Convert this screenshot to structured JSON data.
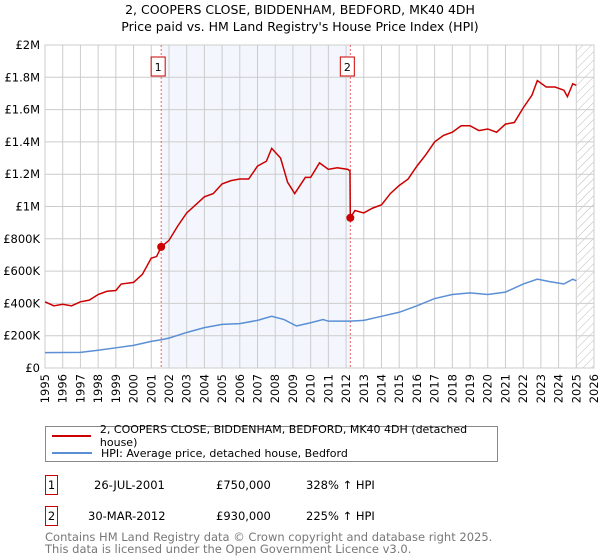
{
  "title": "2, COOPERS CLOSE, BIDDENHAM, BEDFORD, MK40 4DH",
  "subtitle": "Price paid vs. HM Land Registry's House Price Index (HPI)",
  "chart_data": {
    "type": "line",
    "title": "2, COOPERS CLOSE, BIDDENHAM, BEDFORD, MK40 4DH",
    "subtitle": "Price paid vs. HM Land Registry's House Price Index (HPI)",
    "xlim": [
      1995,
      2026
    ],
    "ylim": [
      0,
      2000000
    ],
    "x_ticks": [
      "1995",
      "1996",
      "1997",
      "1998",
      "1999",
      "2000",
      "2001",
      "2002",
      "2003",
      "2004",
      "2005",
      "2006",
      "2007",
      "2008",
      "2009",
      "2010",
      "2011",
      "2012",
      "2013",
      "2014",
      "2015",
      "2016",
      "2017",
      "2018",
      "2019",
      "2020",
      "2021",
      "2022",
      "2023",
      "2024",
      "2025",
      "2026"
    ],
    "y_ticks": [
      {
        "v": 0,
        "label": "£0"
      },
      {
        "v": 200000,
        "label": "£200K"
      },
      {
        "v": 400000,
        "label": "£400K"
      },
      {
        "v": 600000,
        "label": "£600K"
      },
      {
        "v": 800000,
        "label": "£800K"
      },
      {
        "v": 1000000,
        "label": "£1M"
      },
      {
        "v": 1200000,
        "label": "£1.2M"
      },
      {
        "v": 1400000,
        "label": "£1.4M"
      },
      {
        "v": 1600000,
        "label": "£1.6M"
      },
      {
        "v": 1800000,
        "label": "£1.8M"
      },
      {
        "v": 2000000,
        "label": "£2M"
      }
    ],
    "grid": true,
    "shaded_range": [
      2001.56,
      2012.24
    ],
    "hatched_from": 2025.05,
    "series": [
      {
        "name": "2, COOPERS CLOSE, BIDDENHAM, BEDFORD, MK40 4DH (detached house)",
        "color": "#cc0000",
        "x": [
          1995,
          1995.5,
          1996,
          1996.5,
          1997,
          1997.5,
          1998,
          1998.5,
          1999,
          1999.3,
          2000,
          2000.5,
          2001,
          2001.3,
          2001.56,
          2002,
          2002.5,
          2003,
          2003.5,
          2004,
          2004.5,
          2005,
          2005.5,
          2006,
          2006.5,
          2007,
          2007.5,
          2007.8,
          2008.3,
          2008.7,
          2009.1,
          2009.7,
          2010,
          2010.5,
          2011,
          2011.5,
          2012.1,
          2012.22,
          2012.24,
          2012.5,
          2013,
          2013.5,
          2014,
          2014.5,
          2015,
          2015.5,
          2016,
          2016.5,
          2017,
          2017.5,
          2018,
          2018.5,
          2019,
          2019.5,
          2020,
          2020.5,
          2021,
          2021.5,
          2022,
          2022.5,
          2022.8,
          2023.3,
          2023.8,
          2024.3,
          2024.5,
          2024.8,
          2025
        ],
        "y": [
          410000,
          385000,
          395000,
          385000,
          410000,
          420000,
          455000,
          475000,
          480000,
          520000,
          530000,
          580000,
          680000,
          690000,
          750000,
          790000,
          880000,
          960000,
          1010000,
          1060000,
          1080000,
          1140000,
          1160000,
          1170000,
          1170000,
          1250000,
          1280000,
          1360000,
          1300000,
          1150000,
          1080000,
          1180000,
          1180000,
          1270000,
          1230000,
          1240000,
          1230000,
          1220000,
          930000,
          975000,
          960000,
          990000,
          1010000,
          1080000,
          1130000,
          1170000,
          1250000,
          1320000,
          1400000,
          1440000,
          1460000,
          1500000,
          1500000,
          1470000,
          1480000,
          1460000,
          1510000,
          1520000,
          1610000,
          1690000,
          1780000,
          1740000,
          1740000,
          1720000,
          1680000,
          1760000,
          1750000
        ]
      },
      {
        "name": "HPI: Average price, detached house, Bedford",
        "color": "#5b8fd4",
        "x": [
          1995,
          1997,
          1998,
          1999,
          2000,
          2001,
          2001.56,
          2002,
          2003,
          2004,
          2005,
          2006,
          2007,
          2007.8,
          2008.5,
          2009.2,
          2010,
          2010.7,
          2011,
          2012.24,
          2013,
          2014,
          2015,
          2016,
          2017,
          2018,
          2019,
          2020,
          2021,
          2022,
          2022.8,
          2023.5,
          2024.3,
          2024.8,
          2025
        ],
        "y": [
          95000,
          97000,
          110000,
          125000,
          140000,
          165000,
          175000,
          185000,
          220000,
          250000,
          270000,
          275000,
          295000,
          320000,
          300000,
          260000,
          280000,
          300000,
          290000,
          290000,
          295000,
          320000,
          345000,
          385000,
          430000,
          455000,
          465000,
          455000,
          470000,
          520000,
          550000,
          535000,
          520000,
          550000,
          540000
        ]
      }
    ],
    "sales": [
      {
        "id": "1",
        "x": 2001.56,
        "y": 750000,
        "date": "26-JUL-2001",
        "price": "£750,000",
        "hpi": "328% ↑ HPI"
      },
      {
        "id": "2",
        "x": 2012.24,
        "y": 930000,
        "date": "30-MAR-2012",
        "price": "£930,000",
        "hpi": "225% ↑ HPI"
      }
    ]
  },
  "footer": [
    "Contains HM Land Registry data © Crown copyright and database right 2025.",
    "This data is licensed under the Open Government Licence v3.0."
  ]
}
